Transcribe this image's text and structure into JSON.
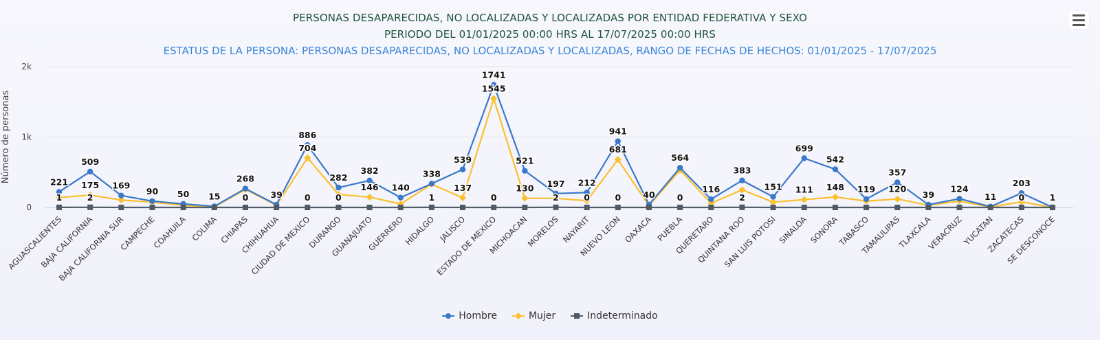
{
  "header": {
    "title": "PERSONAS DESAPARECIDAS, NO LOCALIZADAS Y LOCALIZADAS POR ENTIDAD FEDERATIVA Y SEXO",
    "period": "PERIODO DEL 01/01/2025 00:00 HRS AL 17/07/2025 00:00 HRS",
    "subtitle": "ESTATUS DE LA PERSONA: PERSONAS DESAPARECIDAS, NO LOCALIZADAS Y LOCALIZADAS, RANGO DE FECHAS DE HECHOS: 01/01/2025 - 17/07/2025"
  },
  "menu": {
    "icon": "hamburger-menu-icon"
  },
  "chart_data": {
    "type": "line",
    "title": "PERSONAS DESAPARECIDAS, NO LOCALIZADAS Y LOCALIZADAS POR ENTIDAD FEDERATIVA Y SEXO",
    "ylabel": "Número de personas",
    "xlabel": "",
    "ylim": [
      0,
      2000
    ],
    "yticks": [
      0,
      1000,
      2000
    ],
    "ytick_labels": [
      "0",
      "1k",
      "2k"
    ],
    "grid": true,
    "legend_position": "bottom-center",
    "categories": [
      "AGUASCALIENTES",
      "BAJA CALIFORNIA",
      "BAJA CALIFORNIA SUR",
      "CAMPECHE",
      "COAHUILA",
      "COLIMA",
      "CHIAPAS",
      "CHIHUAHUA",
      "CIUDAD DE MEXICO",
      "DURANGO",
      "GUANAJUATO",
      "GUERRERO",
      "HIDALGO",
      "JALISCO",
      "ESTADO DE MEXICO",
      "MICHOACAN",
      "MORELOS",
      "NAYARIT",
      "NUEVO LEON",
      "OAXACA",
      "PUEBLA",
      "QUERETARO",
      "QUINTANA ROO",
      "SAN LUIS POTOSI",
      "SINALOA",
      "SONORA",
      "TABASCO",
      "TAMAULIPAS",
      "TLAXCALA",
      "VERACRUZ",
      "YUCATAN",
      "ZACATECAS",
      "SE DESCONOCE"
    ],
    "series": [
      {
        "name": "Hombre",
        "color": "#3a78c9",
        "marker": "circle",
        "values": [
          221,
          509,
          169,
          90,
          50,
          15,
          268,
          39,
          886,
          282,
          382,
          140,
          338,
          539,
          1741,
          521,
          197,
          212,
          941,
          40,
          564,
          116,
          383,
          151,
          699,
          542,
          119,
          357,
          39,
          124,
          11,
          203,
          1
        ],
        "labeled": [
          true,
          true,
          true,
          true,
          true,
          true,
          true,
          true,
          true,
          true,
          true,
          true,
          true,
          true,
          true,
          true,
          true,
          true,
          true,
          true,
          true,
          true,
          true,
          true,
          true,
          true,
          true,
          true,
          true,
          true,
          true,
          true,
          true
        ]
      },
      {
        "name": "Mujer",
        "color": "#fbc02d",
        "marker": "diamond",
        "values": [
          140,
          175,
          105,
          75,
          30,
          8,
          255,
          30,
          704,
          185,
          146,
          50,
          330,
          137,
          1545,
          130,
          130,
          95,
          681,
          25,
          530,
          60,
          250,
          75,
          111,
          148,
          90,
          120,
          30,
          90,
          6,
          80,
          0
        ],
        "labeled": [
          false,
          true,
          false,
          false,
          false,
          false,
          false,
          false,
          true,
          false,
          true,
          false,
          false,
          true,
          true,
          true,
          false,
          false,
          true,
          false,
          false,
          false,
          false,
          false,
          true,
          true,
          false,
          true,
          false,
          false,
          false,
          false,
          false
        ]
      },
      {
        "name": "Indeterminado",
        "color": "#4f5b66",
        "marker": "square",
        "values": [
          1,
          2,
          0,
          0,
          0,
          0,
          0,
          0,
          0,
          0,
          0,
          0,
          1,
          0,
          0,
          0,
          2,
          0,
          0,
          0,
          0,
          0,
          2,
          0,
          0,
          0,
          0,
          0,
          0,
          0,
          0,
          0,
          0
        ],
        "labeled": [
          true,
          true,
          false,
          false,
          false,
          false,
          true,
          false,
          true,
          true,
          false,
          false,
          true,
          false,
          true,
          false,
          true,
          true,
          true,
          false,
          true,
          false,
          true,
          false,
          false,
          false,
          false,
          false,
          false,
          false,
          false,
          true,
          false
        ]
      }
    ]
  }
}
